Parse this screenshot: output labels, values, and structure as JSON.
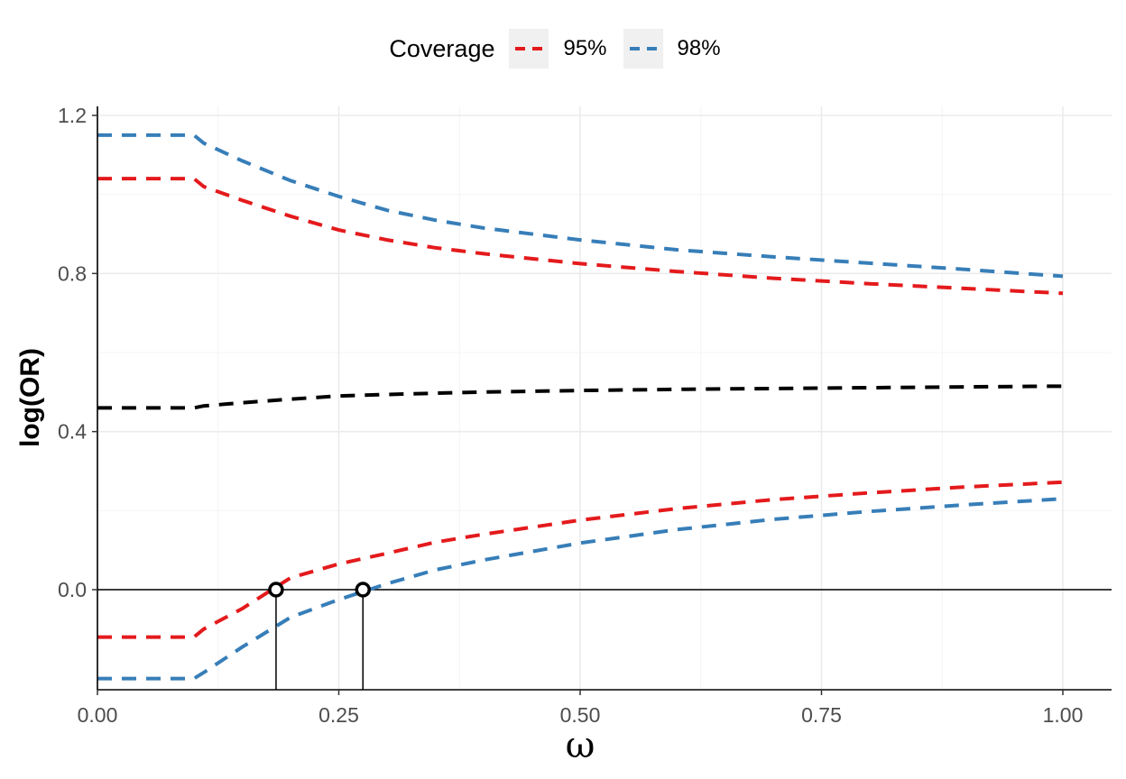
{
  "legend": {
    "title": "Coverage",
    "items": [
      {
        "label": "95%",
        "color": "#e41a1c"
      },
      {
        "label": "98%",
        "color": "#377eb8"
      }
    ]
  },
  "chart_data": {
    "type": "line",
    "xlabel": "ω",
    "ylabel": "log(OR)",
    "xlim": [
      0,
      1.05
    ],
    "ylim": [
      -0.25,
      1.21
    ],
    "x_ticks": [
      0,
      0.25,
      0.5,
      0.75,
      1.0
    ],
    "x_tick_labels": [
      "0.00",
      "0.25",
      "0.50",
      "0.75",
      "1.00"
    ],
    "y_ticks": [
      0,
      0.4,
      0.8,
      1.2
    ],
    "y_tick_labels": [
      "0.0",
      "0.4",
      "0.8",
      "1.2"
    ],
    "grid": true,
    "legend_position": "top",
    "line_style": "dashed",
    "reference_line_y": 0,
    "x": [
      0.0,
      0.1,
      0.11,
      0.15,
      0.2,
      0.25,
      0.3,
      0.35,
      0.4,
      0.5,
      0.6,
      0.7,
      0.8,
      0.9,
      1.0
    ],
    "series": [
      {
        "group": "estimate",
        "color": "#000000",
        "values": [
          0.46,
          0.46,
          0.465,
          0.473,
          0.482,
          0.49,
          0.494,
          0.497,
          0.5,
          0.504,
          0.507,
          0.509,
          0.511,
          0.513,
          0.515
        ]
      },
      {
        "group": "95%",
        "bound": "upper",
        "color": "#e41a1c",
        "values": [
          1.04,
          1.04,
          1.02,
          0.985,
          0.945,
          0.91,
          0.885,
          0.865,
          0.85,
          0.825,
          0.805,
          0.788,
          0.774,
          0.762,
          0.75
        ]
      },
      {
        "group": "95%",
        "bound": "lower",
        "color": "#e41a1c",
        "values": [
          -0.12,
          -0.12,
          -0.1,
          -0.048,
          0.03,
          0.065,
          0.092,
          0.12,
          0.14,
          0.176,
          0.205,
          0.228,
          0.245,
          0.26,
          0.272
        ]
      },
      {
        "group": "98%",
        "bound": "upper",
        "color": "#377eb8",
        "values": [
          1.15,
          1.15,
          1.13,
          1.085,
          1.035,
          0.995,
          0.96,
          0.935,
          0.915,
          0.885,
          0.86,
          0.842,
          0.826,
          0.81,
          0.793
        ]
      },
      {
        "group": "98%",
        "bound": "lower",
        "color": "#377eb8",
        "values": [
          -0.225,
          -0.225,
          -0.21,
          -0.145,
          -0.07,
          -0.025,
          0.015,
          0.05,
          0.075,
          0.118,
          0.152,
          0.178,
          0.198,
          0.215,
          0.23
        ]
      }
    ],
    "zero_crossings": [
      {
        "group": "95%",
        "x": 0.185,
        "y": 0
      },
      {
        "group": "98%",
        "x": 0.275,
        "y": 0
      }
    ]
  }
}
